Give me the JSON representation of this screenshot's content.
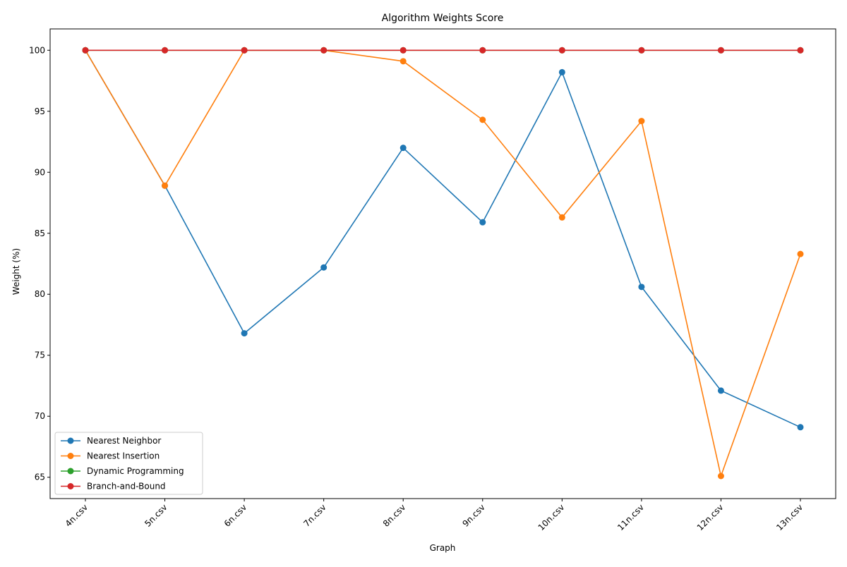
{
  "chart_data": {
    "type": "line",
    "title": "Algorithm Weights Score",
    "xlabel": "Graph",
    "ylabel": "Weight (%)",
    "categories": [
      "4n.csv",
      "5n.csv",
      "6n.csv",
      "7n.csv",
      "8n.csv",
      "9n.csv",
      "10n.csv",
      "11n.csv",
      "12n.csv",
      "13n.csv"
    ],
    "ylim": [
      63.25,
      101.75
    ],
    "yticks": [
      65,
      70,
      75,
      80,
      85,
      90,
      95,
      100
    ],
    "grid": false,
    "legend_position": "lower-left",
    "series": [
      {
        "name": "Nearest Neighbor",
        "color": "#1f77b4",
        "values": [
          100,
          88.9,
          76.8,
          82.2,
          92.0,
          85.9,
          98.2,
          80.6,
          72.1,
          69.1
        ]
      },
      {
        "name": "Nearest Insertion",
        "color": "#ff7f0e",
        "values": [
          100,
          88.9,
          100,
          100,
          99.1,
          94.3,
          86.3,
          94.2,
          65.1,
          83.3
        ]
      },
      {
        "name": "Dynamic Programming",
        "color": "#2ca02c",
        "values": [
          100,
          100,
          100,
          100,
          100,
          100,
          100,
          100,
          100,
          100
        ]
      },
      {
        "name": "Branch-and-Bound",
        "color": "#d62728",
        "values": [
          100,
          100,
          100,
          100,
          100,
          100,
          100,
          100,
          100,
          100
        ]
      }
    ]
  }
}
